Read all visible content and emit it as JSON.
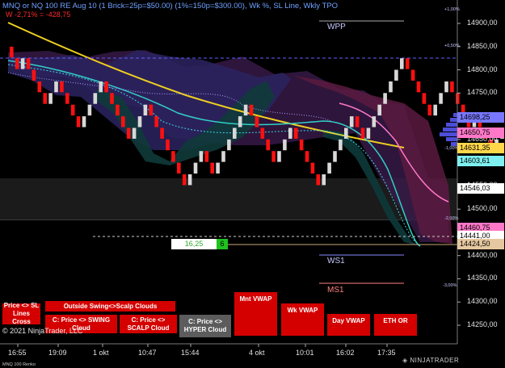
{
  "chart_data": {
    "type": "renko",
    "title": "MNQ or NQ 100 RE Aug 10 (1 Brick=25p=$50.00) (1%=150p=$300.00), Wk %, SL Line, Wkly TPO",
    "subtitle": "W -2,71% = -428,75",
    "yticks": [
      "14900,00",
      "14850,00",
      "14800,00",
      "14750,00",
      "14700,00",
      "14650,00",
      "14600,00",
      "14550,00",
      "14500,00",
      "14450,00",
      "14400,00",
      "14350,00",
      "14300,00",
      "14250,00"
    ],
    "ylim": [
      14225,
      14920
    ],
    "xticks": [
      "16:55",
      "19:09",
      "1 okt",
      "10:47",
      "15:44",
      "4 okt",
      "10:01",
      "16:02",
      "17:35"
    ],
    "pct_ticks": [
      "+1,00%",
      "+0,50%",
      "-1,00%",
      "-2,00%",
      "-3,00%"
    ],
    "level_labels": [
      {
        "name": "WPP",
        "price": 14888
      },
      {
        "name": "WS1",
        "price": 14399
      },
      {
        "name": "MS1",
        "price": 14332
      }
    ],
    "price_labels": [
      {
        "value": "14698,25",
        "price": 14698.25,
        "color": "#7878ff"
      },
      {
        "value": "14650,75",
        "price": 14650.75,
        "color": "#ff78c8"
      },
      {
        "value": "14631,35",
        "price": 14631.35,
        "color": "#ffd84a"
      },
      {
        "value": "14603,61",
        "price": 14603.61,
        "color": "#7ff0f0"
      },
      {
        "value": "14546,03",
        "price": 14546.03,
        "color": "#ffffff"
      },
      {
        "value": "14460,75",
        "price": 14460.75,
        "color": "#ff78c8"
      },
      {
        "value": "14441,00",
        "price": 14441.0,
        "color": "#ffffff"
      },
      {
        "value": "14424,50",
        "price": 14424.5,
        "color": "#e6c8a0"
      }
    ],
    "bricks": [
      {
        "dir": "down",
        "close": 14800,
        "count": 2
      },
      {
        "dir": "up",
        "close": 14825,
        "count": 1
      },
      {
        "dir": "down",
        "close": 14725,
        "count": 4
      },
      {
        "dir": "up",
        "close": 14775,
        "count": 2
      },
      {
        "dir": "down",
        "close": 14675,
        "count": 4
      },
      {
        "dir": "up",
        "close": 14775,
        "count": 4
      },
      {
        "dir": "down",
        "close": 14650,
        "count": 5
      },
      {
        "dir": "up",
        "close": 14725,
        "count": 3
      },
      {
        "dir": "down",
        "close": 14550,
        "count": 7
      },
      {
        "dir": "up",
        "close": 14625,
        "count": 3
      },
      {
        "dir": "down",
        "close": 14575,
        "count": 2
      },
      {
        "dir": "up",
        "close": 14725,
        "count": 6
      },
      {
        "dir": "down",
        "close": 14600,
        "count": 5
      },
      {
        "dir": "up",
        "close": 14675,
        "count": 3
      },
      {
        "dir": "down",
        "close": 14550,
        "count": 5
      },
      {
        "dir": "up",
        "close": 14700,
        "count": 6
      },
      {
        "dir": "down",
        "close": 14650,
        "count": 2
      },
      {
        "dir": "up",
        "close": 14825,
        "count": 7
      },
      {
        "dir": "down",
        "close": 14700,
        "count": 5
      },
      {
        "dir": "up",
        "close": 14775,
        "count": 3
      },
      {
        "dir": "down",
        "close": 14675,
        "count": 4
      },
      {
        "dir": "up",
        "close": 14700,
        "count": 1
      },
      {
        "dir": "down",
        "close": 14625,
        "count": 3
      },
      {
        "dir": "up",
        "close": 14700,
        "count": 3
      },
      {
        "dir": "down",
        "close": 14425,
        "count": 11
      },
      {
        "dir": "up",
        "close": 14450,
        "count": 1
      },
      {
        "dir": "down",
        "close": 14400,
        "count": 2
      }
    ],
    "price_box": {
      "value": "16,25",
      "count": "6"
    }
  },
  "buttons": [
    {
      "label": "Price <> SL Lines Cross",
      "color": "red"
    },
    {
      "label": "Outside Swing<>Scalp Clouds",
      "color": "red"
    },
    {
      "label": "C: Price <> SWING Cloud",
      "color": "red"
    },
    {
      "label": "C: Price <> SCALP Cloud",
      "color": "red"
    },
    {
      "label": "C: Price <> HYPER Cloud",
      "color": "grey"
    },
    {
      "label": "Mnt VWAP",
      "color": "red"
    },
    {
      "label": "Wk VWAP",
      "color": "red"
    },
    {
      "label": "Day VWAP",
      "color": "red"
    },
    {
      "label": "ETH OR",
      "color": "red"
    }
  ],
  "copyright": "© 2021 NinjaTrader, LLC",
  "instrument_footer": "MNQ 100 Renko",
  "logo_text": "NINJATRADER"
}
